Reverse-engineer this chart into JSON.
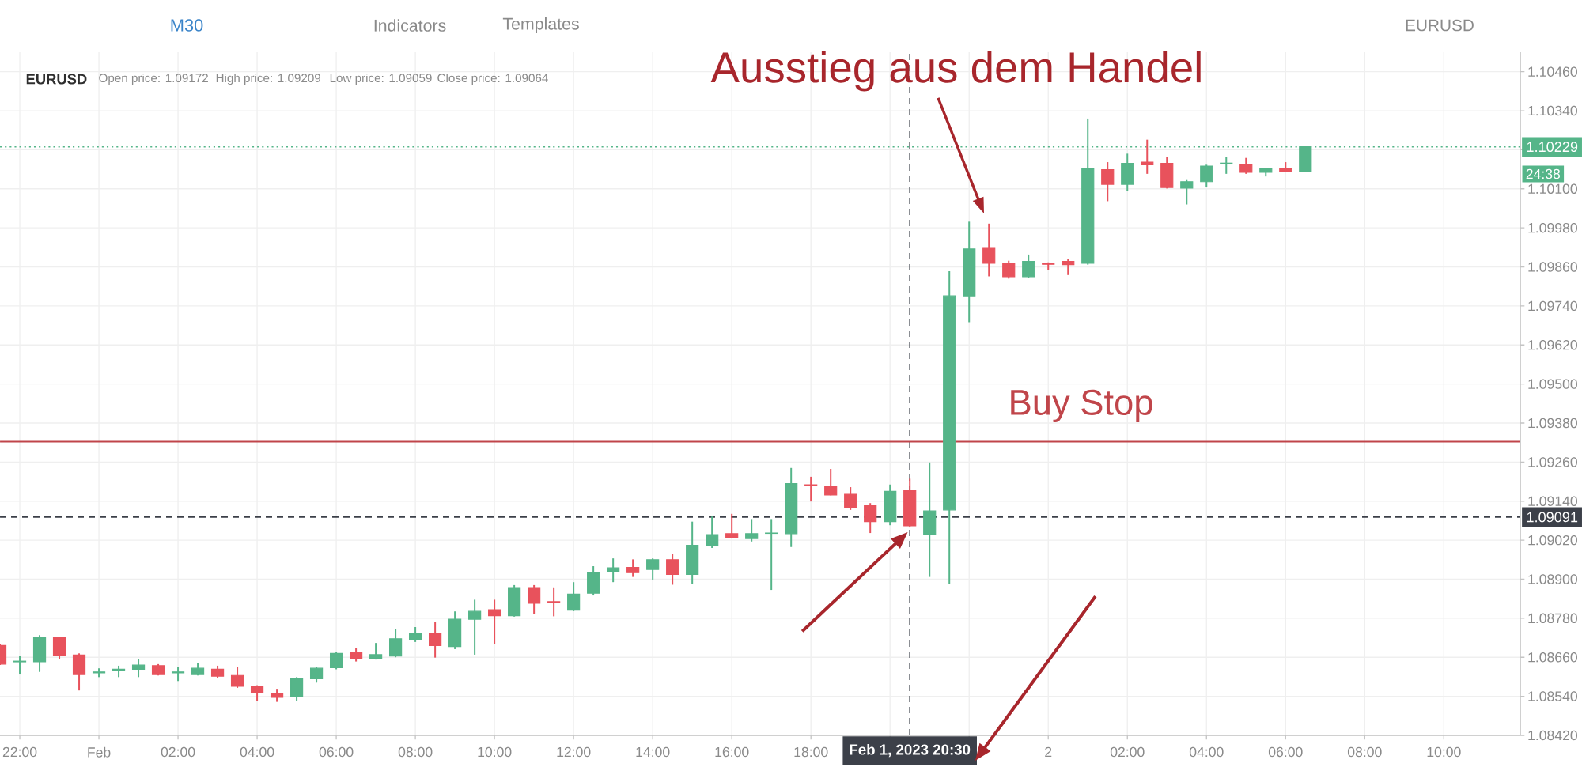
{
  "chart_data": {
    "type": "candlestick",
    "title": "EURUSD",
    "annotations": [
      "M30",
      "Indicators",
      "Templates",
      "EURUSD",
      "Open price: 1.09172",
      "High price: 1.09209",
      "Low price: 1.09059",
      "Close price: 1.09064",
      "Ausstieg aus dem Handel",
      "24:38"
    ],
    "x": [
      "2023-01-31T21:30",
      "2023-01-31T22:00",
      "2023-01-31T22:30",
      "2023-01-31T23:00",
      "2023-01-31T23:30",
      "2023-02-01T00:00",
      "2023-02-01T00:30",
      "2023-02-01T01:00",
      "2023-02-01T01:30",
      "2023-02-01T02:00",
      "2023-02-01T02:30",
      "2023-02-01T03:00",
      "2023-02-01T03:30",
      "2023-02-01T04:00",
      "2023-02-01T04:30",
      "2023-02-01T05:00",
      "2023-02-01T05:30",
      "2023-02-01T06:00",
      "2023-02-01T06:30",
      "2023-02-01T07:00",
      "2023-02-01T07:30",
      "2023-02-01T08:00",
      "2023-02-01T08:30",
      "2023-02-01T09:00",
      "2023-02-01T09:30",
      "2023-02-01T10:00",
      "2023-02-01T10:30",
      "2023-02-01T11:00",
      "2023-02-01T11:30",
      "2023-02-01T12:00",
      "2023-02-01T12:30",
      "2023-02-01T13:00",
      "2023-02-01T13:30",
      "2023-02-01T14:00",
      "2023-02-01T14:30",
      "2023-02-01T15:00",
      "2023-02-01T15:30",
      "2023-02-01T16:00",
      "2023-02-01T16:30",
      "2023-02-01T17:00",
      "2023-02-01T17:30",
      "2023-02-01T18:00",
      "2023-02-01T18:30",
      "2023-02-01T19:00",
      "2023-02-01T19:30",
      "2023-02-01T20:00",
      "2023-02-01T20:30",
      "2023-02-01T21:00",
      "2023-02-01T21:30",
      "2023-02-01T22:00",
      "2023-02-01T22:30",
      "2023-02-01T23:00",
      "2023-02-01T23:30",
      "2023-02-02T00:00",
      "2023-02-02T00:30",
      "2023-02-02T01:00",
      "2023-02-02T01:30",
      "2023-02-02T02:00",
      "2023-02-02T02:30",
      "2023-02-02T03:00",
      "2023-02-02T03:30",
      "2023-02-02T04:00",
      "2023-02-02T04:30",
      "2023-02-02T05:00",
      "2023-02-02T05:30",
      "2023-02-02T06:00",
      "2023-02-02T06:30"
    ],
    "ohlc": [
      [
        1.08696,
        1.08701,
        1.08636,
        1.08639
      ],
      [
        1.08646,
        1.08664,
        1.08607,
        1.08648
      ],
      [
        1.08646,
        1.08728,
        1.08615,
        1.0872
      ],
      [
        1.0872,
        1.08723,
        1.08655,
        1.08667
      ],
      [
        1.08667,
        1.08672,
        1.08558,
        1.08607
      ],
      [
        1.08612,
        1.08626,
        1.08599,
        1.08615
      ],
      [
        1.08619,
        1.08634,
        1.08599,
        1.08623
      ],
      [
        1.08623,
        1.08655,
        1.08599,
        1.08636
      ],
      [
        1.08634,
        1.08639,
        1.08604,
        1.08607
      ],
      [
        1.08612,
        1.08631,
        1.08587,
        1.08615
      ],
      [
        1.08607,
        1.08642,
        1.08604,
        1.08626
      ],
      [
        1.08623,
        1.08634,
        1.08595,
        1.08602
      ],
      [
        1.08604,
        1.08631,
        1.08566,
        1.08571
      ],
      [
        1.08571,
        1.08574,
        1.08526,
        1.0855
      ],
      [
        1.0855,
        1.08563,
        1.08523,
        1.08537
      ],
      [
        1.08539,
        1.08599,
        1.08526,
        1.08594
      ],
      [
        1.08594,
        1.08631,
        1.08582,
        1.08626
      ],
      [
        1.08628,
        1.08676,
        1.08623,
        1.08672
      ],
      [
        1.08675,
        1.08688,
        1.08647,
        1.08655
      ],
      [
        1.08655,
        1.08704,
        1.08653,
        1.08668
      ],
      [
        1.08664,
        1.08748,
        1.0866,
        1.08717
      ],
      [
        1.08715,
        1.08753,
        1.08707,
        1.08732
      ],
      [
        1.08732,
        1.08769,
        1.08659,
        1.08696
      ],
      [
        1.08693,
        1.08801,
        1.08685,
        1.08777
      ],
      [
        1.08777,
        1.08837,
        1.08668,
        1.08801
      ],
      [
        1.08806,
        1.08837,
        1.08701,
        1.08788
      ],
      [
        1.08788,
        1.08882,
        1.08785,
        1.08874
      ],
      [
        1.08874,
        1.08882,
        1.08793,
        1.08826
      ],
      [
        1.08831,
        1.08875,
        1.08786,
        1.08829
      ],
      [
        1.08805,
        1.08891,
        1.08802,
        1.08854
      ],
      [
        1.08857,
        1.0894,
        1.0885,
        1.08919
      ],
      [
        1.08922,
        1.08964,
        1.08891,
        1.08935
      ],
      [
        1.08936,
        1.08961,
        1.08907,
        1.0892
      ],
      [
        1.0893,
        1.08964,
        1.08899,
        1.0896
      ],
      [
        1.0896,
        1.08977,
        1.08883,
        1.08915
      ],
      [
        1.08915,
        1.09077,
        1.08886,
        1.09004
      ],
      [
        1.09004,
        1.09093,
        1.08996,
        1.09037
      ],
      [
        1.0904,
        1.09101,
        1.09025,
        1.09029
      ],
      [
        1.09025,
        1.09085,
        1.09016,
        1.0904
      ],
      [
        1.09041,
        1.09085,
        1.08867,
        1.09042
      ],
      [
        1.0904,
        1.09242,
        1.08999,
        1.09194
      ],
      [
        1.0919,
        1.09215,
        1.09139,
        1.09187
      ],
      [
        1.09184,
        1.09239,
        1.09158,
        1.09159
      ],
      [
        1.09161,
        1.09183,
        1.09113,
        1.09121
      ],
      [
        1.09126,
        1.09134,
        1.09042,
        1.09077
      ],
      [
        1.09077,
        1.09191,
        1.09066,
        1.0917
      ],
      [
        1.09172,
        1.09209,
        1.09059,
        1.09064
      ],
      [
        1.09037,
        1.09259,
        1.08907,
        1.0911
      ],
      [
        1.09113,
        1.09847,
        1.08886,
        1.09771
      ],
      [
        1.09771,
        1.09999,
        1.0969,
        1.09915
      ],
      [
        1.09917,
        1.09993,
        1.09831,
        1.09871
      ],
      [
        1.09871,
        1.09879,
        1.09824,
        1.0983
      ],
      [
        1.0983,
        1.09898,
        1.09827,
        1.09877
      ],
      [
        1.09871,
        1.09874,
        1.0985,
        1.09868
      ],
      [
        1.09877,
        1.09884,
        1.09835,
        1.09867
      ],
      [
        1.09871,
        1.10316,
        1.09867,
        1.10162
      ],
      [
        1.10159,
        1.10182,
        1.10062,
        1.10114
      ],
      [
        1.10114,
        1.10208,
        1.10094,
        1.10178
      ],
      [
        1.10182,
        1.10251,
        1.10146,
        1.10174
      ],
      [
        1.10178,
        1.10198,
        1.10101,
        1.10104
      ],
      [
        1.10102,
        1.10127,
        1.10052,
        1.10122
      ],
      [
        1.10122,
        1.10174,
        1.10106,
        1.1017
      ],
      [
        1.10177,
        1.10198,
        1.10146,
        1.10179
      ],
      [
        1.10174,
        1.10195,
        1.10146,
        1.10151
      ],
      [
        1.10151,
        1.10165,
        1.10138,
        1.10162
      ],
      [
        1.10162,
        1.10182,
        1.10151,
        1.10152
      ],
      [
        1.10152,
        1.10229,
        1.10151,
        1.10229
      ]
    ],
    "colors": [
      "#e8525c",
      "#55b589",
      "#55b589",
      "#e8525c",
      "#e8525c",
      "#55b589",
      "#55b589",
      "#55b589",
      "#e8525c",
      "#55b589",
      "#55b589",
      "#e8525c",
      "#e8525c",
      "#e8525c",
      "#e8525c",
      "#55b589",
      "#55b589",
      "#55b589",
      "#e8525c",
      "#55b589",
      "#55b589",
      "#55b589",
      "#e8525c",
      "#55b589",
      "#55b589",
      "#e8525c",
      "#55b589",
      "#e8525c",
      "#e8525c",
      "#55b589",
      "#55b589",
      "#55b589",
      "#e8525c",
      "#55b589",
      "#e8525c",
      "#55b589",
      "#55b589",
      "#e8525c",
      "#55b589",
      "#55b589",
      "#55b589",
      "#e8525c",
      "#e8525c",
      "#e8525c",
      "#e8525c",
      "#55b589",
      "#e8525c",
      "#55b589",
      "#55b589",
      "#55b589",
      "#e8525c",
      "#e8525c",
      "#55b589",
      "#e8525c",
      "#e8525c",
      "#55b589",
      "#e8525c",
      "#55b589",
      "#e8525c",
      "#e8525c",
      "#55b589",
      "#55b589",
      "#55b589",
      "#e8525c",
      "#55b589",
      "#e8525c",
      "#55b589"
    ],
    "xlim": [
      "2023-01-31T21:30",
      "2023-02-02T11:56"
    ],
    "xticks": [
      {
        "value": "2023-01-31T22:00",
        "label": "22:00"
      },
      {
        "value": "2023-02-01T00:00",
        "label": "Feb"
      },
      {
        "value": "2023-02-01T02:00",
        "label": "02:00"
      },
      {
        "value": "2023-02-01T04:00",
        "label": "04:00"
      },
      {
        "value": "2023-02-01T06:00",
        "label": "06:00"
      },
      {
        "value": "2023-02-01T08:00",
        "label": "08:00"
      },
      {
        "value": "2023-02-01T10:00",
        "label": "10:00"
      },
      {
        "value": "2023-02-01T12:00",
        "label": "12:00"
      },
      {
        "value": "2023-02-01T14:00",
        "label": "14:00"
      },
      {
        "value": "2023-02-01T16:00",
        "label": "16:00"
      },
      {
        "value": "2023-02-01T18:00",
        "label": "18:00"
      },
      {
        "value": "2023-02-01T20:00",
        "label": null
      },
      {
        "value": "2023-02-01T22:00",
        "label": null
      },
      {
        "value": "2023-02-02T00:00",
        "label": "2"
      },
      {
        "value": "2023-02-02T02:00",
        "label": "02:00"
      },
      {
        "value": "2023-02-02T04:00",
        "label": "04:00"
      },
      {
        "value": "2023-02-02T06:00",
        "label": "06:00"
      },
      {
        "value": "2023-02-02T08:00",
        "label": "08:00"
      },
      {
        "value": "2023-02-02T10:00",
        "label": "10:00"
      }
    ],
    "ylim": [
      1.0842,
      1.1052
    ],
    "yticks": [
      {
        "value": 1.0842,
        "label": "1.08420"
      },
      {
        "value": 1.0854,
        "label": "1.08540"
      },
      {
        "value": 1.0866,
        "label": "1.08660"
      },
      {
        "value": 1.0878,
        "label": "1.08780"
      },
      {
        "value": 1.089,
        "label": "1.08900"
      },
      {
        "value": 1.0902,
        "label": "1.09020"
      },
      {
        "value": 1.0914,
        "label": "1.09140"
      },
      {
        "value": 1.0926,
        "label": "1.09260"
      },
      {
        "value": 1.0938,
        "label": "1.09380"
      },
      {
        "value": 1.095,
        "label": "1.09500"
      },
      {
        "value": 1.0962,
        "label": "1.09620"
      },
      {
        "value": 1.0974,
        "label": "1.09740"
      },
      {
        "value": 1.0986,
        "label": "1.09860"
      },
      {
        "value": 1.0998,
        "label": "1.09980"
      },
      {
        "value": 1.101,
        "label": "1.10100"
      },
      {
        "value": 1.1022,
        "label": null
      },
      {
        "value": 1.1034,
        "label": "1.10340"
      },
      {
        "value": 1.1046,
        "label": "1.10460"
      }
    ],
    "grid": true,
    "ref_lines": [
      {
        "axis": "y",
        "value": 1.10229,
        "label": "1.10229",
        "color": "#55b589",
        "line_style": "dotted"
      },
      {
        "axis": "y",
        "value": 1.09091,
        "label": "1.09091",
        "color": "#3c4049",
        "line_style": "dashed"
      },
      {
        "axis": "x",
        "value": "2023-02-01T20:30",
        "label": "Feb 1, 2023 20:30",
        "color": "#3c4049",
        "line_style": "dashed"
      },
      {
        "axis": "y",
        "value": 1.09323,
        "label": "Buy Stop",
        "color": "#c0454a",
        "line_style": "solid"
      }
    ]
  }
}
